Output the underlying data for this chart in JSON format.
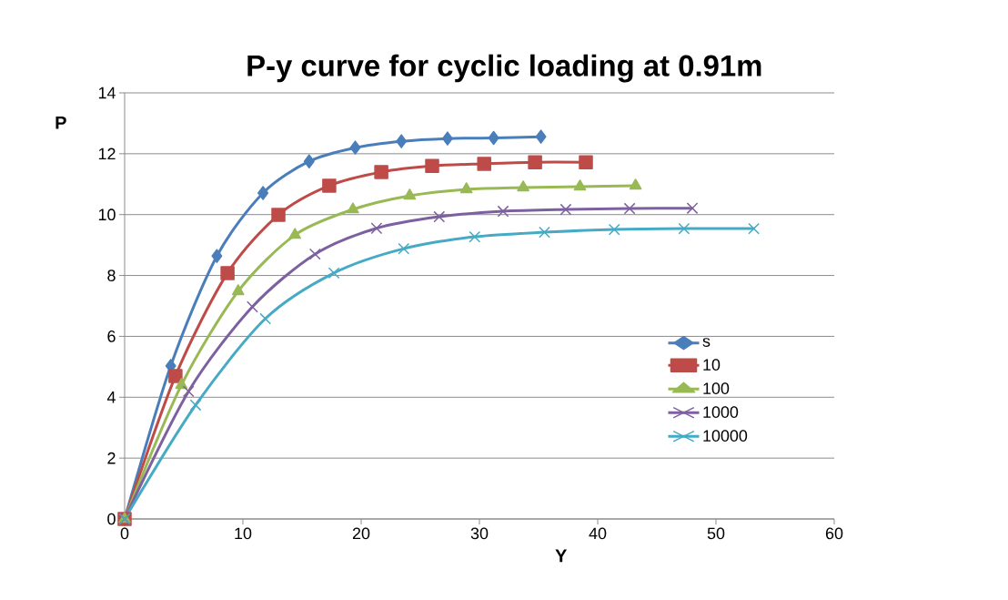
{
  "chart_data": {
    "type": "line",
    "title": "P-y curve for cyclic loading at 0.91m",
    "xlabel": "Y",
    "ylabel": "P",
    "xlim": [
      0,
      60
    ],
    "ylim": [
      0,
      14
    ],
    "xticks": [
      0,
      10,
      20,
      30,
      40,
      50,
      60
    ],
    "yticks": [
      0,
      2,
      4,
      6,
      8,
      10,
      12,
      14
    ],
    "grid": "y",
    "legend": "right",
    "line_style": "solid",
    "series": [
      {
        "name": "s",
        "color": "#4a7ebb",
        "marker": "diamond",
        "x": [
          0,
          3.9,
          7.8,
          11.7,
          15.6,
          19.5,
          23.4,
          27.3,
          31.2,
          35.2
        ],
        "values": [
          0,
          5.03,
          8.64,
          10.71,
          11.75,
          12.2,
          12.41,
          12.5,
          12.52,
          12.56
        ]
      },
      {
        "name": "10",
        "color": "#be4b48",
        "marker": "square",
        "x": [
          0,
          4.3,
          8.7,
          13.0,
          17.3,
          21.7,
          26.0,
          30.4,
          34.7,
          39.0
        ],
        "values": [
          0,
          4.7,
          8.08,
          9.99,
          10.95,
          11.4,
          11.6,
          11.67,
          11.72,
          11.72
        ]
      },
      {
        "name": "100",
        "color": "#98b954",
        "marker": "triangle",
        "x": [
          0,
          4.8,
          9.6,
          14.4,
          19.3,
          24.1,
          28.9,
          33.7,
          38.5,
          43.2
        ],
        "values": [
          0,
          4.4,
          7.48,
          9.33,
          10.17,
          10.62,
          10.83,
          10.89,
          10.92,
          10.95
        ]
      },
      {
        "name": "1000",
        "color": "#7d60a0",
        "marker": "cross",
        "x": [
          0,
          5.4,
          10.8,
          16.1,
          21.3,
          26.6,
          32.0,
          37.3,
          42.7,
          48.0
        ],
        "values": [
          0,
          4.19,
          6.97,
          8.7,
          9.55,
          9.93,
          10.11,
          10.17,
          10.2,
          10.21
        ]
      },
      {
        "name": "10000",
        "color": "#46aac5",
        "marker": "cross",
        "x": [
          0,
          6.0,
          11.9,
          17.7,
          23.6,
          29.6,
          35.5,
          41.4,
          47.3,
          53.2
        ],
        "values": [
          0,
          3.74,
          6.58,
          8.08,
          8.88,
          9.27,
          9.42,
          9.51,
          9.54,
          9.54
        ]
      }
    ]
  }
}
